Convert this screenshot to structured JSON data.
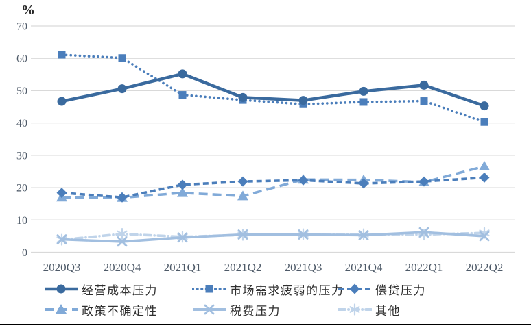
{
  "chart_data": {
    "type": "line",
    "title": "",
    "categories": [
      "2020Q3",
      "2020Q4",
      "2021Q1",
      "2021Q2",
      "2021Q3",
      "2021Q4",
      "2022Q1",
      "2022Q2"
    ],
    "series": [
      {
        "name": "经营成本压力",
        "marker": "circle",
        "line": "solid",
        "color": "#3A6A9E",
        "width": 4.5,
        "values": [
          46.7,
          50.6,
          55.2,
          47.9,
          47.0,
          49.8,
          51.7,
          45.3
        ]
      },
      {
        "name": "市场需求疲弱的压力",
        "marker": "square",
        "line": "dotted",
        "color": "#4B7EBB",
        "width": 3.6,
        "values": [
          61.1,
          60.1,
          48.7,
          47.1,
          45.8,
          46.5,
          46.8,
          40.3
        ]
      },
      {
        "name": "偿贷压力",
        "marker": "diamond",
        "line": "dashed",
        "color": "#4B7EBB",
        "width": 3.6,
        "values": [
          18.4,
          17.0,
          20.9,
          21.9,
          22.3,
          21.3,
          21.9,
          23.1
        ]
      },
      {
        "name": "政策不确定性",
        "marker": "triangle",
        "line": "long-dash",
        "color": "#81AAD8",
        "width": 3.6,
        "values": [
          17.0,
          16.9,
          18.4,
          17.4,
          22.5,
          22.4,
          21.7,
          26.6
        ]
      },
      {
        "name": "税费压力",
        "marker": "x",
        "line": "solid",
        "color": "#A2BFE0",
        "width": 3.6,
        "values": [
          4.0,
          3.3,
          4.6,
          5.5,
          5.5,
          5.3,
          6.2,
          5.0
        ]
      },
      {
        "name": "其他",
        "marker": "asterisk",
        "line": "dash-dot",
        "color": "#C0D4EA",
        "width": 3.6,
        "values": [
          3.9,
          5.7,
          4.8,
          5.4,
          5.6,
          5.6,
          5.5,
          6.0
        ]
      }
    ],
    "xlabel": "",
    "ylabel": "%",
    "ylim": [
      0,
      70
    ],
    "yticks": [
      0,
      10,
      20,
      30,
      40,
      50,
      60,
      70
    ],
    "grid": true,
    "legend_position": "bottom",
    "gridline_color": "#D9D9D9",
    "axis_text_color": "#4E5A68"
  }
}
